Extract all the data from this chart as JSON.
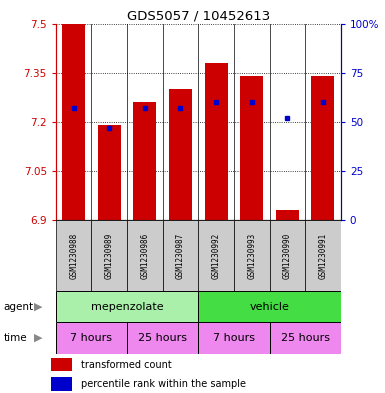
{
  "title": "GDS5057 / 10452613",
  "samples": [
    "GSM1230988",
    "GSM1230989",
    "GSM1230986",
    "GSM1230987",
    "GSM1230992",
    "GSM1230993",
    "GSM1230990",
    "GSM1230991"
  ],
  "bar_values": [
    7.5,
    7.19,
    7.26,
    7.3,
    7.38,
    7.34,
    6.93,
    7.34
  ],
  "percentile_values": [
    57,
    47,
    57,
    57,
    60,
    60,
    52,
    60
  ],
  "bar_bottom": 6.9,
  "ylim": [
    6.9,
    7.5
  ],
  "y_ticks": [
    6.9,
    7.05,
    7.2,
    7.35,
    7.5
  ],
  "y_tick_labels": [
    "6.9",
    "7.05",
    "7.2",
    "7.35",
    "7.5"
  ],
  "y2_ticks": [
    0,
    25,
    50,
    75,
    100
  ],
  "y2_tick_labels": [
    "0",
    "25",
    "50",
    "75",
    "100%"
  ],
  "bar_color": "#cc0000",
  "percentile_color": "#0000cc",
  "agent_labels": [
    "mepenzolate",
    "vehicle"
  ],
  "agent_color_light": "#aaf0aa",
  "agent_color_green": "#44dd44",
  "time_labels": [
    "7 hours",
    "25 hours",
    "7 hours",
    "25 hours"
  ],
  "time_color_lavender": "#ee88ee",
  "time_color_pink": "#ee88ee",
  "legend_red_label": "transformed count",
  "legend_blue_label": "percentile rank within the sample",
  "xlabel_agent": "agent",
  "xlabel_time": "time",
  "gray_bg": "#cccccc"
}
